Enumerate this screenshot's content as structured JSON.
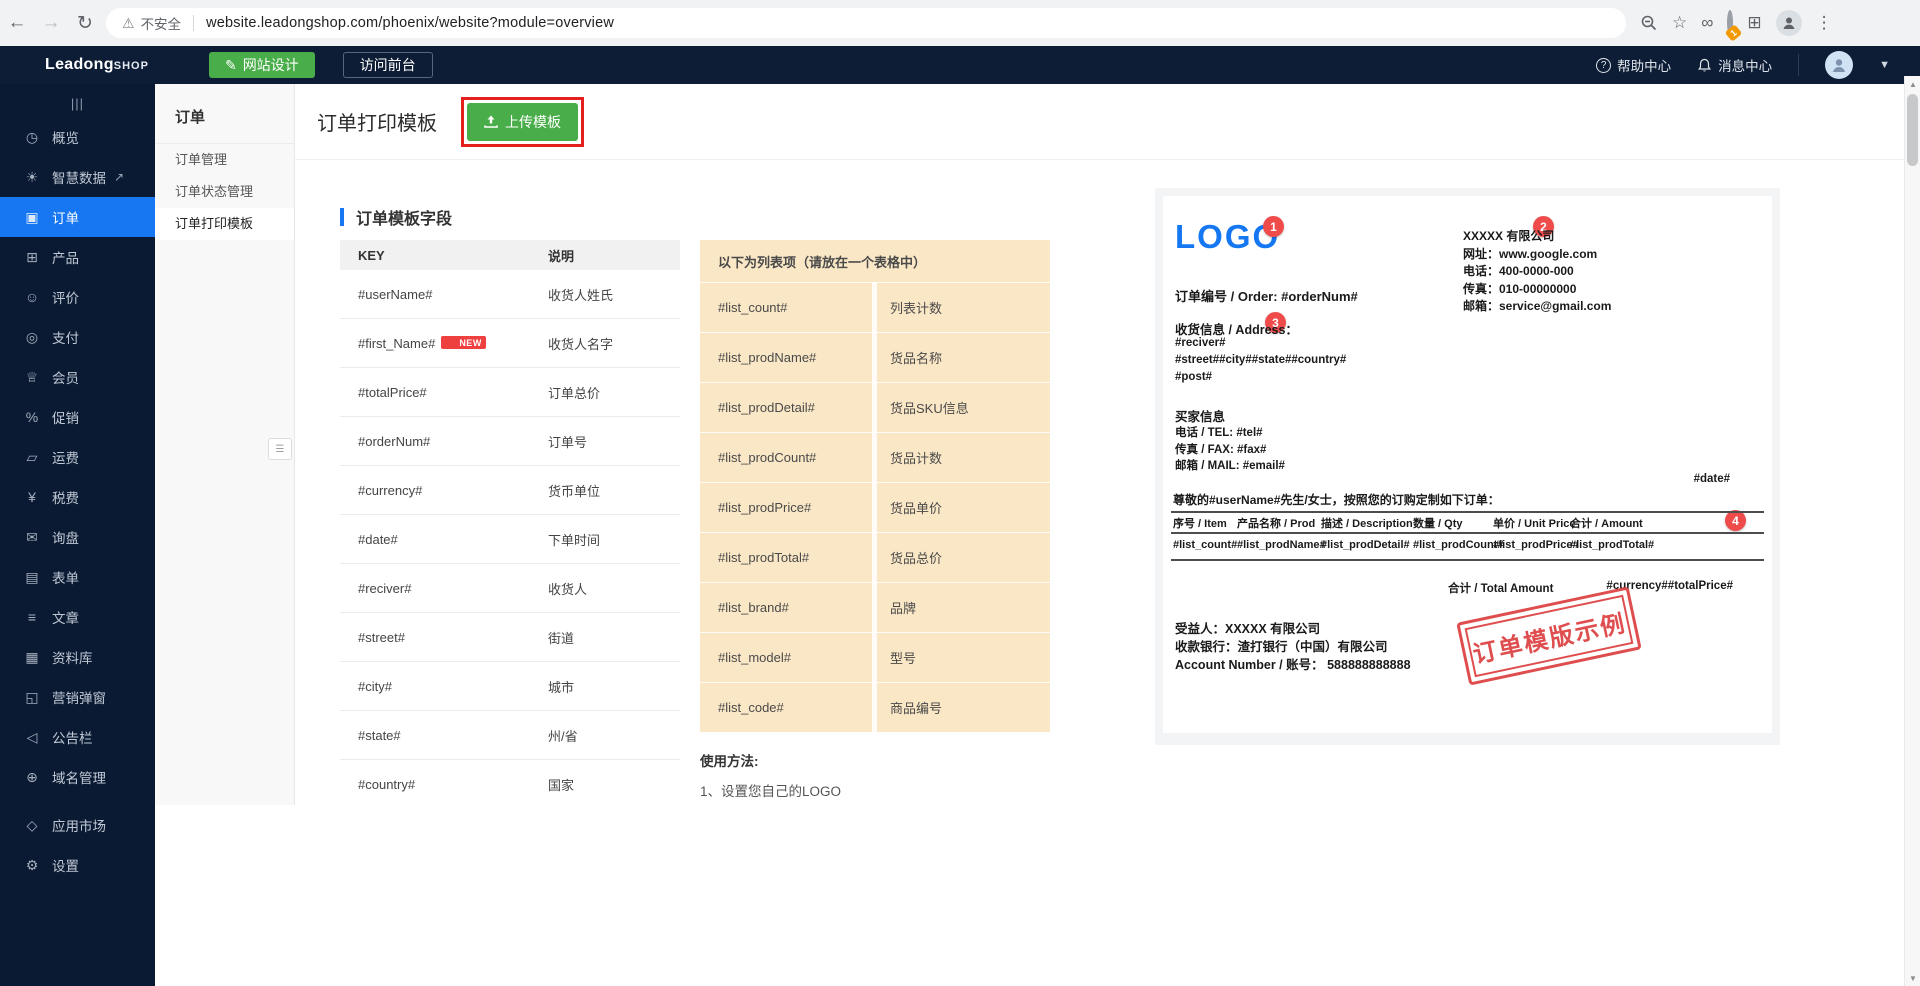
{
  "browser": {
    "url": "website.leadongshop.com/phoenix/website?module=overview",
    "security_label": "不安全",
    "extension_badge": "1"
  },
  "topnav": {
    "logo_main": "Leadong",
    "logo_sub": "SHOP",
    "design_button": "网站设计",
    "visit_button": "访问前台",
    "help_label": "帮助中心",
    "messages_label": "消息中心"
  },
  "sidebar": {
    "items": [
      {
        "id": "overview",
        "label": "概览",
        "icon": "gauge-icon",
        "glyph": "◷"
      },
      {
        "id": "smart-data",
        "label": "智慧数据",
        "icon": "smart-data-icon",
        "glyph": "☀",
        "external": true
      },
      {
        "id": "orders",
        "label": "订单",
        "icon": "order-icon",
        "glyph": "▣",
        "active": true
      },
      {
        "id": "products",
        "label": "产品",
        "icon": "product-icon",
        "glyph": "⊞"
      },
      {
        "id": "reviews",
        "label": "评价",
        "icon": "review-icon",
        "glyph": "☺"
      },
      {
        "id": "payment",
        "label": "支付",
        "icon": "payment-icon",
        "glyph": "◎"
      },
      {
        "id": "members",
        "label": "会员",
        "icon": "member-icon",
        "glyph": "♕"
      },
      {
        "id": "promotion",
        "label": "促销",
        "icon": "promotion-icon",
        "glyph": "%"
      },
      {
        "id": "shipping",
        "label": "运费",
        "icon": "shipping-icon",
        "glyph": "▱"
      },
      {
        "id": "tax",
        "label": "税费",
        "icon": "tax-icon",
        "glyph": "¥"
      },
      {
        "id": "inquiry",
        "label": "询盘",
        "icon": "inquiry-icon",
        "glyph": "✉"
      },
      {
        "id": "forms",
        "label": "表单",
        "icon": "form-icon",
        "glyph": "▤"
      },
      {
        "id": "articles",
        "label": "文章",
        "icon": "article-icon",
        "glyph": "≡"
      },
      {
        "id": "library",
        "label": "资料库",
        "icon": "library-icon",
        "glyph": "▦"
      },
      {
        "id": "popup",
        "label": "营销弹窗",
        "icon": "popup-icon",
        "glyph": "◱"
      },
      {
        "id": "announcement",
        "label": "公告栏",
        "icon": "announcement-icon",
        "glyph": "◁"
      },
      {
        "id": "domain",
        "label": "域名管理",
        "icon": "domain-icon",
        "glyph": "⊕"
      },
      {
        "id": "app-market",
        "label": "应用市场",
        "icon": "app-market-icon",
        "glyph": "◇",
        "gap": true
      },
      {
        "id": "settings",
        "label": "设置",
        "icon": "settings-icon",
        "glyph": "⚙"
      }
    ]
  },
  "submenu": {
    "title": "订单",
    "items": [
      {
        "id": "order-manage",
        "label": "订单管理"
      },
      {
        "id": "order-status",
        "label": "订单状态管理"
      },
      {
        "id": "order-print",
        "label": "订单打印模板",
        "active": true
      }
    ]
  },
  "page": {
    "title": "订单打印模板",
    "upload_button": "上传模板"
  },
  "fields": {
    "section_title": "订单模板字段",
    "key_table": {
      "headers": [
        "KEY",
        "说明"
      ],
      "rows": [
        {
          "key": "#userName#",
          "desc": "收货人姓氏"
        },
        {
          "key": "#first_Name#",
          "desc": "收货人名字",
          "badge": "NEW"
        },
        {
          "key": "#totalPrice#",
          "desc": "订单总价"
        },
        {
          "key": "#orderNum#",
          "desc": "订单号"
        },
        {
          "key": "#currency#",
          "desc": "货币单位"
        },
        {
          "key": "#date#",
          "desc": "下单时间"
        },
        {
          "key": "#reciver#",
          "desc": "收货人"
        },
        {
          "key": "#street#",
          "desc": "街道"
        },
        {
          "key": "#city#",
          "desc": "城市"
        },
        {
          "key": "#state#",
          "desc": "州/省"
        },
        {
          "key": "#country#",
          "desc": "国家"
        }
      ]
    },
    "list_table": {
      "caption": "以下为列表项（请放在一个表格中）",
      "rows": [
        {
          "key": "#list_count#",
          "desc": "列表计数"
        },
        {
          "key": "#list_prodName#",
          "desc": "货品名称"
        },
        {
          "key": "#list_prodDetail#",
          "desc": "货品SKU信息"
        },
        {
          "key": "#list_prodCount#",
          "desc": "货品计数"
        },
        {
          "key": "#list_prodPrice#",
          "desc": "货品单价"
        },
        {
          "key": "#list_prodTotal#",
          "desc": "货品总价"
        },
        {
          "key": "#list_brand#",
          "desc": "品牌"
        },
        {
          "key": "#list_model#",
          "desc": "型号"
        },
        {
          "key": "#list_code#",
          "desc": "商品编号"
        }
      ]
    },
    "usage_title": "使用方法:",
    "usage_step": "1、设置您自己的LOGO"
  },
  "preview": {
    "logo": "LOGO",
    "badges": [
      "1",
      "2",
      "3",
      "4"
    ],
    "company": {
      "name": "XXXXX 有限公司",
      "site": "网址：www.google.com",
      "tel": "电话：400-0000-000",
      "fax": "传真：010-00000000",
      "mail": "邮箱：service@gmail.com"
    },
    "order_line": "订单编号 / Order: #orderNum#",
    "address_label": "收货信息 / Address：",
    "address_lines": [
      "#reciver#",
      "#street##city##state##country#",
      "#post#"
    ],
    "buyer_title": "买家信息",
    "buyer_lines": [
      "电话 / TEL: #tel#",
      "传真 / FAX: #fax#",
      "邮箱 / MAIL: #email#"
    ],
    "date": "#date#",
    "greeting": "尊敬的#userName#先生/女士，按照您的订购定制如下订单：",
    "table": {
      "headers": [
        "序号 / Item",
        "产品名称 / Prod",
        "描述 / Description",
        "数量 / Qty",
        "单价 / Unit Price",
        "合计 / Amount"
      ],
      "row": [
        "#list_count#",
        "#list_prodName#",
        "#list_prodDetail#",
        "#list_prodCount#",
        "#list_prodPrice#",
        "#list_prodTotal#"
      ]
    },
    "total_label": "合计 / Total Amount",
    "total_value": "#currency##totalPrice#",
    "beneficiary": "受益人：XXXXX 有限公司",
    "bank": "收款银行：渣打银行（中国）有限公司",
    "account": "Account Number / 账号： 588888888888",
    "stamp": "订单模版示例"
  },
  "colors": {
    "accent_blue": "#1777f2",
    "button_green": "#49ae49",
    "annotation_red": "#e4201e",
    "badge_red": "#ef4b4b",
    "navy": "#0d1d36",
    "list_table_bg": "#fae7c6"
  }
}
